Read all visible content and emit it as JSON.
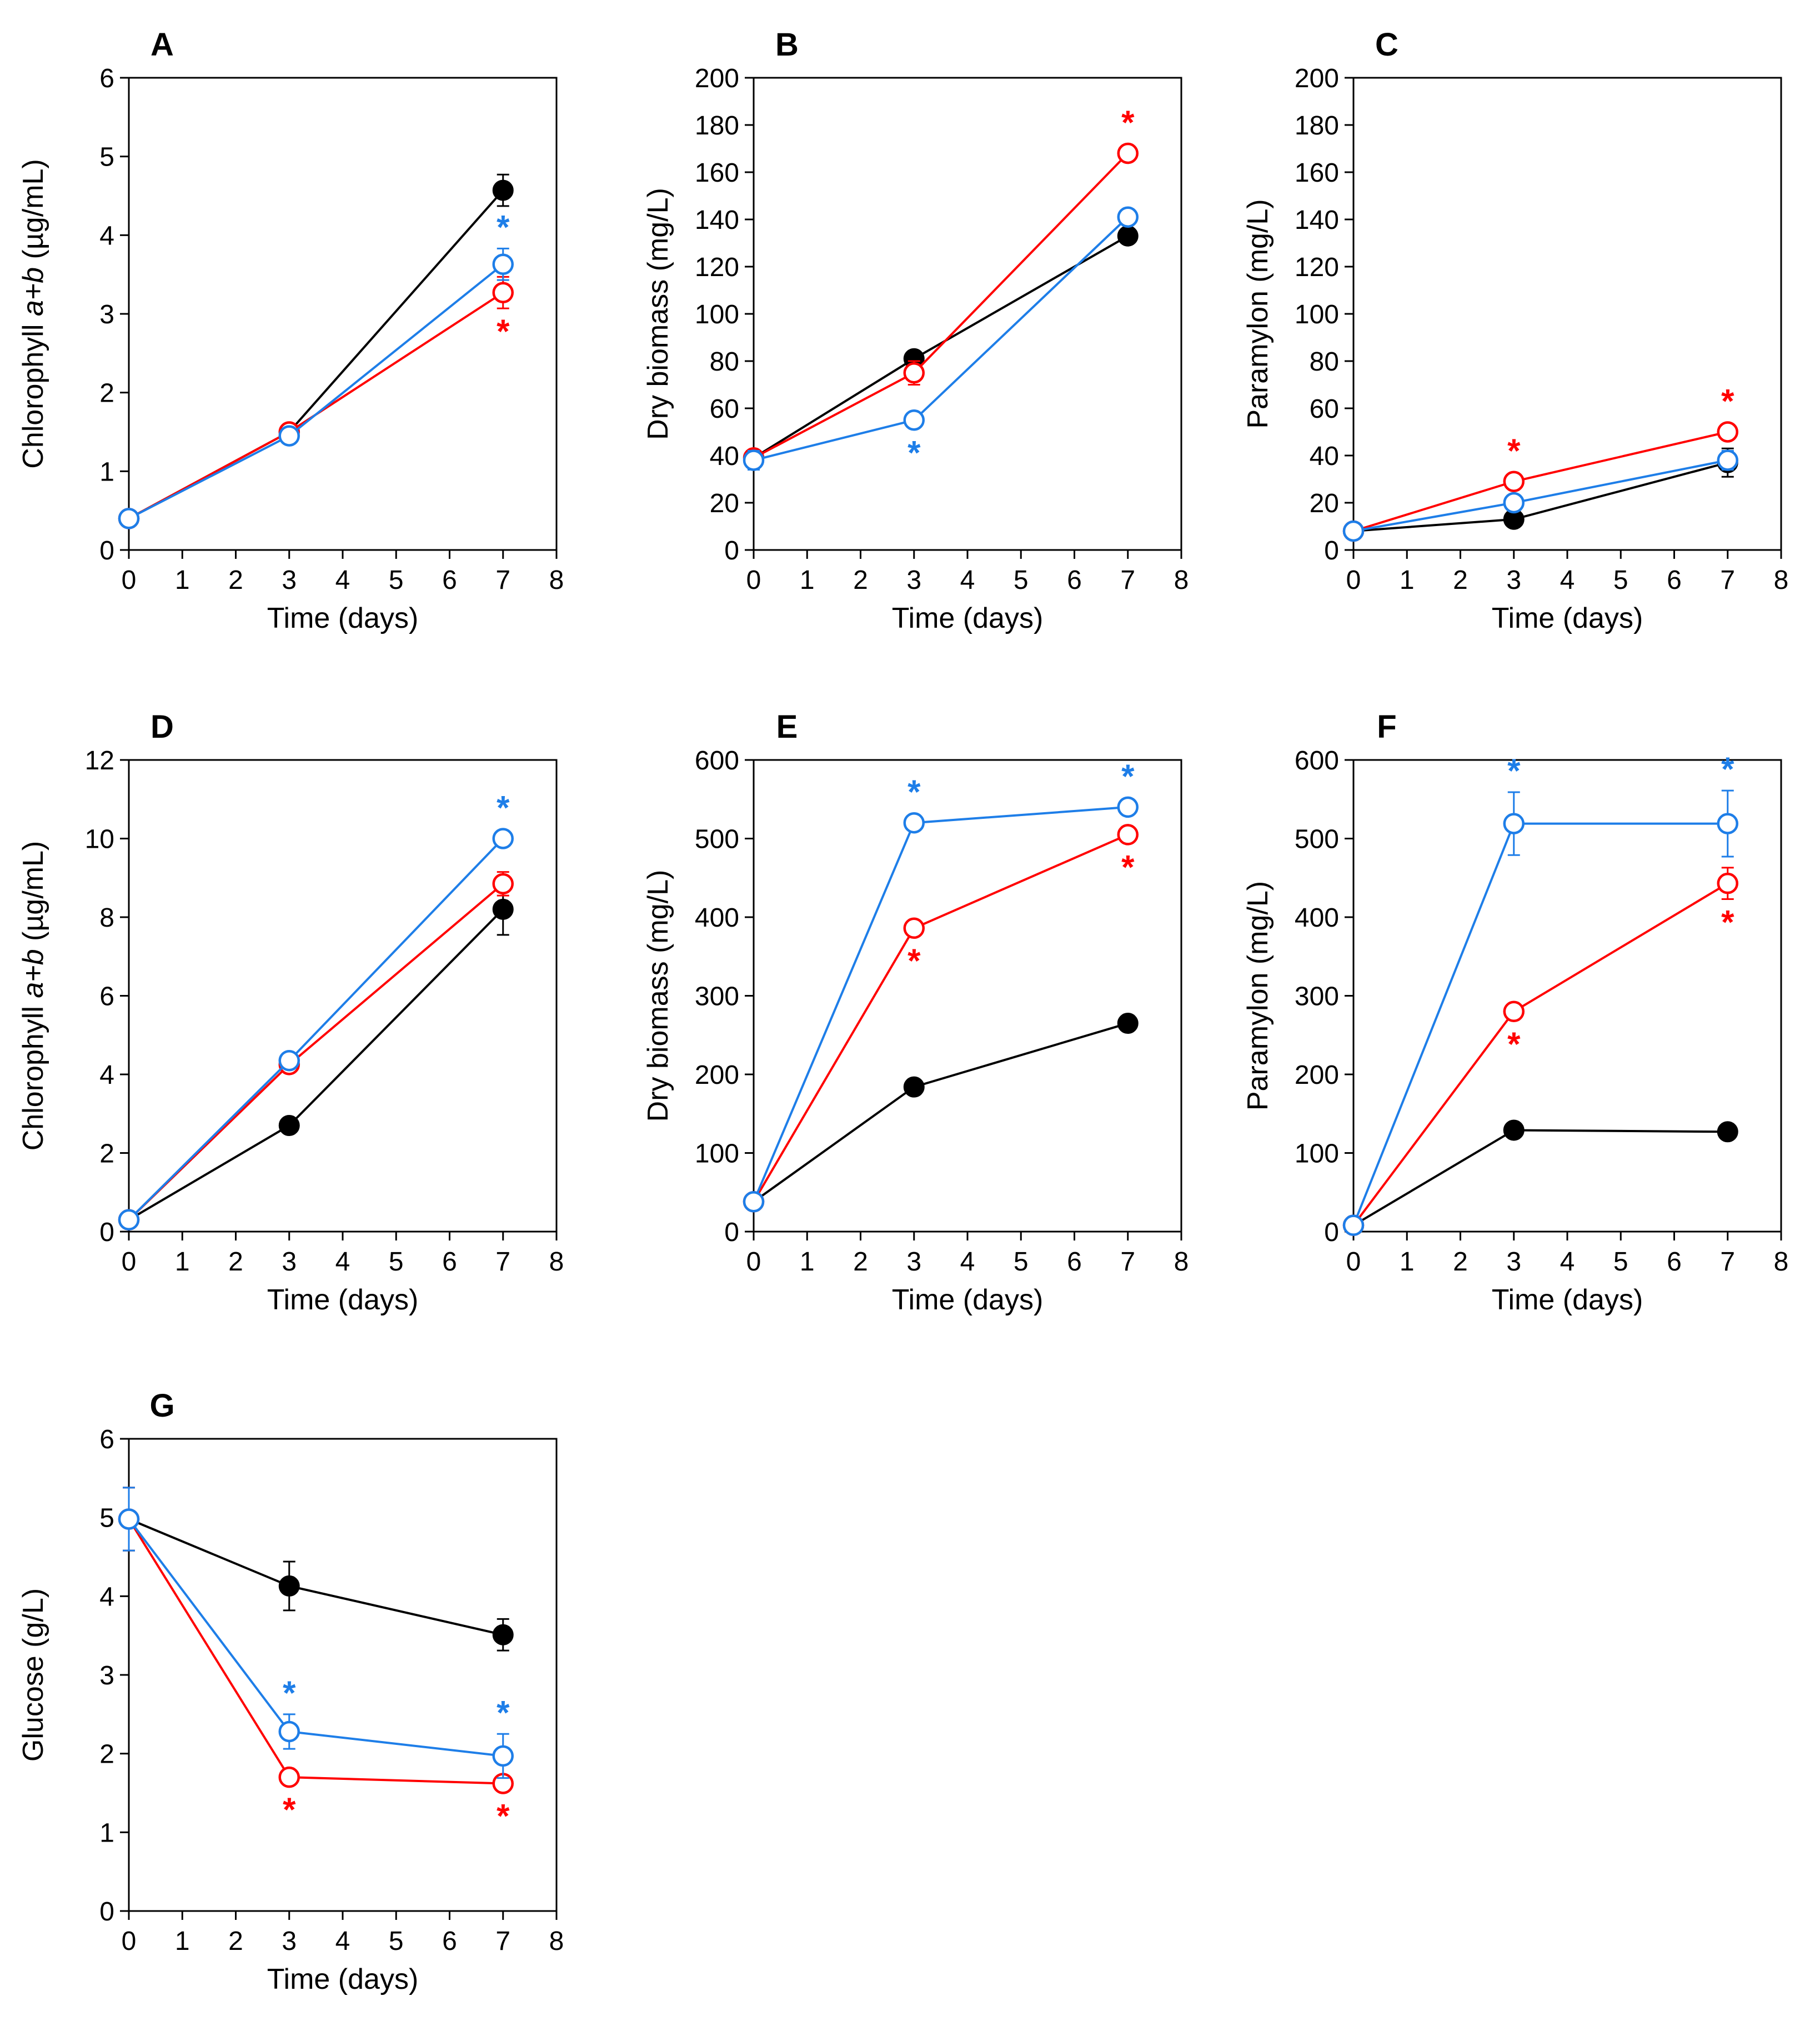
{
  "colors": {
    "control": "#000000",
    "red_series": "#ff0000",
    "blue_series": "#1e7ee8",
    "axis": "#000000"
  },
  "chart_data": [
    {
      "panel": "A",
      "type": "line",
      "xlabel": "Time (days)",
      "ylabel_parts": [
        "Chlorophyll ",
        "a+b",
        " (µg/mL)"
      ],
      "xlim": [
        0,
        8
      ],
      "xticks": [
        "0",
        "1",
        "2",
        "3",
        "4",
        "5",
        "6",
        "7",
        "8"
      ],
      "ylim": [
        0,
        6
      ],
      "yticks": [
        "0",
        "1",
        "2",
        "3",
        "4",
        "5",
        "6"
      ],
      "x": [
        0,
        3,
        7
      ],
      "series": [
        {
          "name": "black",
          "marker": "filled",
          "values": [
            0.4,
            1.5,
            4.57
          ],
          "errors": [
            0.02,
            0.04,
            0.2
          ],
          "stars": [
            false,
            false,
            false
          ]
        },
        {
          "name": "red",
          "marker": "open",
          "values": [
            0.4,
            1.5,
            3.27
          ],
          "errors": [
            0.02,
            0.04,
            0.2
          ],
          "stars": [
            false,
            false,
            "below"
          ]
        },
        {
          "name": "blue",
          "marker": "open",
          "values": [
            0.4,
            1.45,
            3.63
          ],
          "errors": [
            0.02,
            0.04,
            0.2
          ],
          "stars": [
            false,
            false,
            "above"
          ]
        }
      ]
    },
    {
      "panel": "B",
      "type": "line",
      "xlabel": "Time (days)",
      "ylabel_parts": [
        "Dry biomass (mg/L)"
      ],
      "xlim": [
        0,
        8
      ],
      "xticks": [
        "0",
        "1",
        "2",
        "3",
        "4",
        "5",
        "6",
        "7",
        "8"
      ],
      "ylim": [
        0,
        200
      ],
      "yticks": [
        "0",
        "20",
        "40",
        "60",
        "80",
        "100",
        "120",
        "140",
        "160",
        "180",
        "200"
      ],
      "x": [
        0,
        3,
        7
      ],
      "series": [
        {
          "name": "black",
          "marker": "filled",
          "values": [
            39,
            81,
            133
          ],
          "errors": [
            3,
            3,
            3
          ],
          "stars": [
            false,
            false,
            false
          ]
        },
        {
          "name": "red",
          "marker": "open",
          "values": [
            39,
            75,
            168
          ],
          "errors": [
            3,
            5,
            2
          ],
          "stars": [
            false,
            false,
            "above"
          ]
        },
        {
          "name": "blue",
          "marker": "open",
          "values": [
            38,
            55,
            141
          ],
          "errors": [
            4,
            3,
            2
          ],
          "stars": [
            false,
            "below",
            false
          ]
        }
      ]
    },
    {
      "panel": "C",
      "type": "line",
      "xlabel": "Time (days)",
      "ylabel_parts": [
        "Paramylon (mg/L)"
      ],
      "xlim": [
        0,
        8
      ],
      "xticks": [
        "0",
        "1",
        "2",
        "3",
        "4",
        "5",
        "6",
        "7",
        "8"
      ],
      "ylim": [
        0,
        200
      ],
      "yticks": [
        "0",
        "20",
        "40",
        "60",
        "80",
        "100",
        "120",
        "140",
        "160",
        "180",
        "200"
      ],
      "x": [
        0,
        3,
        7
      ],
      "series": [
        {
          "name": "black",
          "marker": "filled",
          "values": [
            8,
            13,
            37
          ],
          "errors": [
            1,
            1,
            6
          ],
          "stars": [
            false,
            false,
            false
          ]
        },
        {
          "name": "red",
          "marker": "open",
          "values": [
            8,
            29,
            50
          ],
          "errors": [
            1,
            2,
            2
          ],
          "stars": [
            false,
            "above",
            "above"
          ]
        },
        {
          "name": "blue",
          "marker": "open",
          "values": [
            8,
            20,
            38
          ],
          "errors": [
            1,
            2,
            4
          ],
          "stars": [
            false,
            false,
            false
          ]
        }
      ]
    },
    {
      "panel": "D",
      "type": "line",
      "xlabel": "Time (days)",
      "ylabel_parts": [
        "Chlorophyll ",
        "a+b",
        " (µg/mL)"
      ],
      "xlim": [
        0,
        8
      ],
      "xticks": [
        "0",
        "1",
        "2",
        "3",
        "4",
        "5",
        "6",
        "7",
        "8"
      ],
      "ylim": [
        0,
        12
      ],
      "yticks": [
        "0",
        "2",
        "4",
        "6",
        "8",
        "10",
        "12"
      ],
      "x": [
        0,
        3,
        7
      ],
      "series": [
        {
          "name": "black",
          "marker": "filled",
          "values": [
            0.3,
            2.7,
            8.2
          ],
          "errors": [
            0.05,
            0.1,
            0.65
          ],
          "stars": [
            false,
            false,
            false
          ]
        },
        {
          "name": "red",
          "marker": "open",
          "values": [
            0.3,
            4.25,
            8.85
          ],
          "errors": [
            0.05,
            0.1,
            0.3
          ],
          "stars": [
            false,
            false,
            false
          ]
        },
        {
          "name": "blue",
          "marker": "open",
          "values": [
            0.3,
            4.35,
            10.0
          ],
          "errors": [
            0.05,
            0.1,
            0.15
          ],
          "stars": [
            false,
            false,
            "above"
          ]
        }
      ]
    },
    {
      "panel": "E",
      "type": "line",
      "xlabel": "Time (days)",
      "ylabel_parts": [
        "Dry biomass (mg/L)"
      ],
      "xlim": [
        0,
        8
      ],
      "xticks": [
        "0",
        "1",
        "2",
        "3",
        "4",
        "5",
        "6",
        "7",
        "8"
      ],
      "ylim": [
        0,
        600
      ],
      "yticks": [
        "0",
        "100",
        "200",
        "300",
        "400",
        "500",
        "600"
      ],
      "x": [
        0,
        3,
        7
      ],
      "series": [
        {
          "name": "black",
          "marker": "filled",
          "values": [
            38,
            184,
            265
          ],
          "errors": [
            4,
            5,
            5
          ],
          "stars": [
            false,
            false,
            false
          ]
        },
        {
          "name": "red",
          "marker": "open",
          "values": [
            38,
            386,
            505
          ],
          "errors": [
            4,
            5,
            5
          ],
          "stars": [
            false,
            "below",
            "below"
          ]
        },
        {
          "name": "blue",
          "marker": "open",
          "values": [
            38,
            520,
            540
          ],
          "errors": [
            4,
            4,
            4
          ],
          "stars": [
            false,
            "above",
            "above"
          ]
        }
      ]
    },
    {
      "panel": "F",
      "type": "line",
      "xlabel": "Time (days)",
      "ylabel_parts": [
        "Paramylon (mg/L)"
      ],
      "xlim": [
        0,
        8
      ],
      "xticks": [
        "0",
        "1",
        "2",
        "3",
        "4",
        "5",
        "6",
        "7",
        "8"
      ],
      "ylim": [
        0,
        600
      ],
      "yticks": [
        "0",
        "100",
        "200",
        "300",
        "400",
        "500",
        "600"
      ],
      "x": [
        0,
        3,
        7
      ],
      "series": [
        {
          "name": "black",
          "marker": "filled",
          "values": [
            8,
            129,
            127
          ],
          "errors": [
            2,
            4,
            4
          ],
          "stars": [
            false,
            false,
            false
          ]
        },
        {
          "name": "red",
          "marker": "open",
          "values": [
            8,
            280,
            443
          ],
          "errors": [
            2,
            10,
            20
          ],
          "stars": [
            false,
            "below",
            "below"
          ]
        },
        {
          "name": "blue",
          "marker": "open",
          "values": [
            8,
            519,
            519
          ],
          "errors": [
            2,
            40,
            42
          ],
          "stars": [
            false,
            "above",
            "above"
          ]
        }
      ]
    },
    {
      "panel": "G",
      "type": "line",
      "xlabel": "Time (days)",
      "ylabel_parts": [
        "Glucose (g/L)"
      ],
      "xlim": [
        0,
        8
      ],
      "xticks": [
        "0",
        "1",
        "2",
        "3",
        "4",
        "5",
        "6",
        "7",
        "8"
      ],
      "ylim": [
        0,
        6
      ],
      "yticks": [
        "0",
        "1",
        "2",
        "3",
        "4",
        "5",
        "6"
      ],
      "x": [
        0,
        3,
        7
      ],
      "series": [
        {
          "name": "black",
          "marker": "filled",
          "values": [
            4.98,
            4.13,
            3.51
          ],
          "errors": [
            0.4,
            0.31,
            0.2
          ],
          "stars": [
            false,
            false,
            false
          ]
        },
        {
          "name": "red",
          "marker": "open",
          "values": [
            4.98,
            1.7,
            1.62
          ],
          "errors": [
            0.4,
            0.04,
            0.05
          ],
          "stars": [
            false,
            "below",
            "below"
          ]
        },
        {
          "name": "blue",
          "marker": "open",
          "values": [
            4.98,
            2.28,
            1.97
          ],
          "errors": [
            0.4,
            0.22,
            0.28
          ],
          "stars": [
            false,
            "above",
            "above"
          ]
        }
      ]
    }
  ]
}
